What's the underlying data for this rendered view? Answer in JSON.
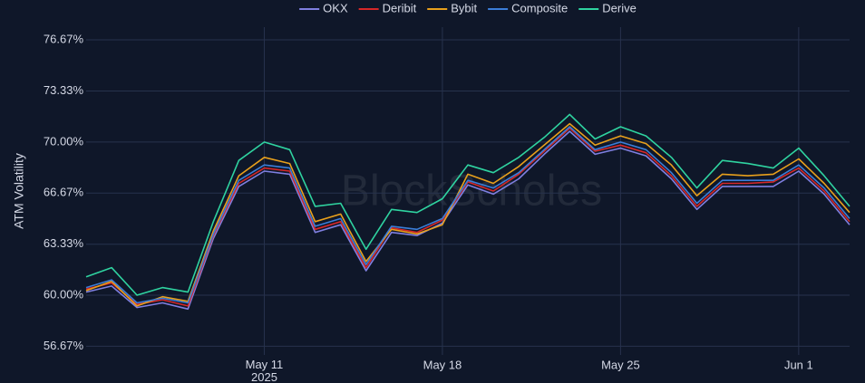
{
  "chart_data": {
    "type": "line",
    "y_label": "ATM Volatility",
    "watermark": "BlockScholes",
    "x": [
      "2025-05-04",
      "2025-05-05",
      "2025-05-06",
      "2025-05-07",
      "2025-05-08",
      "2025-05-09",
      "2025-05-10",
      "2025-05-11",
      "2025-05-12",
      "2025-05-13",
      "2025-05-14",
      "2025-05-15",
      "2025-05-16",
      "2025-05-17",
      "2025-05-18",
      "2025-05-19",
      "2025-05-20",
      "2025-05-21",
      "2025-05-22",
      "2025-05-23",
      "2025-05-24",
      "2025-05-25",
      "2025-05-26",
      "2025-05-27",
      "2025-05-28",
      "2025-05-29",
      "2025-05-30",
      "2025-05-31",
      "2025-06-01",
      "2025-06-02",
      "2025-06-03"
    ],
    "xlim": [
      "2025-05-04",
      "2025-06-03"
    ],
    "xticks": [
      {
        "value": "2025-05-11",
        "label": "May 11\n2025"
      },
      {
        "value": "2025-05-18",
        "label": "May 18"
      },
      {
        "value": "2025-05-25",
        "label": "May 25"
      },
      {
        "value": "2025-06-01",
        "label": "Jun 1"
      }
    ],
    "ylim": [
      56.1,
      77.5
    ],
    "yticks": [
      {
        "value": 56.67,
        "label": "56.67%"
      },
      {
        "value": 60,
        "label": "60.00%"
      },
      {
        "value": 63.33,
        "label": "63.33%"
      },
      {
        "value": 66.67,
        "label": "66.67%"
      },
      {
        "value": 70,
        "label": "70.00%"
      },
      {
        "value": 73.33,
        "label": "73.33%"
      },
      {
        "value": 76.67,
        "label": "76.67%"
      }
    ],
    "grid": true,
    "series": [
      {
        "name": "OKX",
        "color": "#7f7fe0",
        "values": [
          60.2,
          60.6,
          59.2,
          59.5,
          59.1,
          63.7,
          67.1,
          68.1,
          67.9,
          64.1,
          64.6,
          61.6,
          64.1,
          63.9,
          64.7,
          67.2,
          66.6,
          67.6,
          69.2,
          70.7,
          69.2,
          69.6,
          69.1,
          67.6,
          65.6,
          67.1,
          67.1,
          67.1,
          68.1,
          66.6,
          64.6
        ]
      },
      {
        "name": "Deribit",
        "color": "#d62728",
        "values": [
          60.4,
          60.8,
          59.4,
          59.7,
          59.3,
          63.9,
          67.3,
          68.3,
          68.1,
          64.3,
          64.8,
          61.8,
          64.4,
          64.1,
          64.9,
          67.4,
          66.8,
          67.9,
          69.4,
          70.9,
          69.4,
          69.8,
          69.3,
          67.8,
          65.8,
          67.3,
          67.3,
          67.4,
          68.3,
          66.8,
          64.8
        ]
      },
      {
        "name": "Bybit",
        "color": "#e8a01c",
        "values": [
          60.3,
          60.9,
          59.3,
          59.9,
          59.6,
          64.2,
          67.8,
          69.0,
          68.6,
          64.8,
          65.3,
          62.2,
          64.3,
          64.0,
          64.6,
          67.9,
          67.3,
          68.4,
          69.8,
          71.2,
          69.8,
          70.4,
          69.9,
          68.5,
          66.5,
          67.9,
          67.8,
          67.9,
          68.9,
          67.3,
          65.4
        ]
      },
      {
        "name": "Composite",
        "color": "#3b7dd8",
        "values": [
          60.5,
          61.0,
          59.5,
          59.8,
          59.5,
          64.0,
          67.5,
          68.5,
          68.3,
          64.5,
          65.0,
          62.0,
          64.5,
          64.3,
          65.0,
          67.5,
          67.0,
          68.0,
          69.5,
          71.0,
          69.5,
          70.0,
          69.5,
          68.0,
          66.0,
          67.5,
          67.5,
          67.5,
          68.5,
          67.0,
          65.0
        ]
      },
      {
        "name": "Derive",
        "color": "#2fd3a0",
        "values": [
          61.2,
          61.8,
          60.0,
          60.5,
          60.2,
          64.8,
          68.8,
          70.0,
          69.5,
          65.8,
          66.0,
          63.0,
          65.6,
          65.4,
          66.3,
          68.5,
          68.0,
          69.0,
          70.3,
          71.8,
          70.2,
          71.0,
          70.4,
          69.0,
          67.0,
          68.8,
          68.6,
          68.3,
          69.6,
          67.8,
          65.8
        ]
      }
    ],
    "legend": "top"
  }
}
